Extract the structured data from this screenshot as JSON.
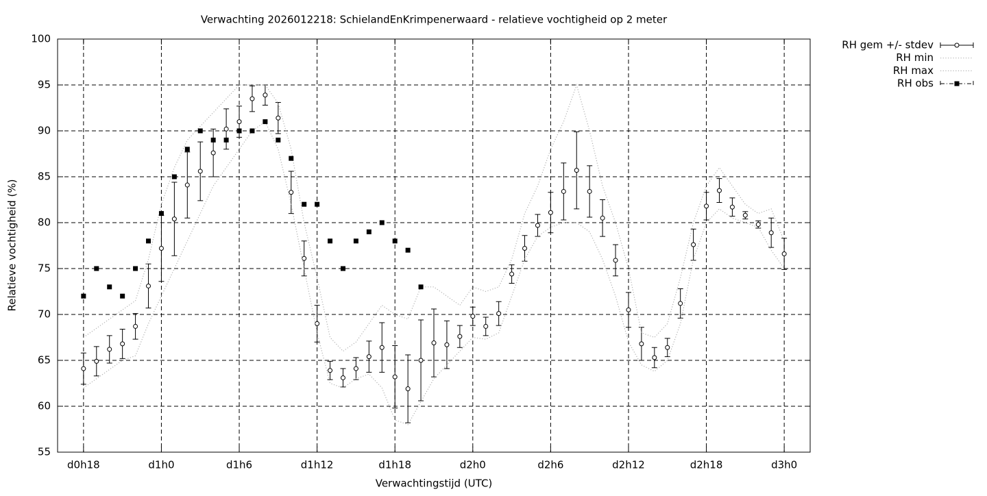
{
  "chart_data": {
    "type": "line",
    "title": "Verwachting 2026012218: SchielandEnKrimpenerwaard - relatieve vochtigheid op 2 meter",
    "x_label": "Verwachtingstijd (UTC)",
    "y_label": "Relatieve vochtigheid (%)",
    "x": [
      18,
      19,
      20,
      21,
      22,
      23,
      24,
      25,
      26,
      27,
      28,
      29,
      30,
      31,
      32,
      33,
      34,
      35,
      36,
      37,
      38,
      39,
      40,
      41,
      42,
      43,
      44,
      45,
      46,
      47,
      48,
      49,
      50,
      51,
      52,
      53,
      54,
      55,
      56,
      57,
      58,
      59,
      60,
      61,
      62,
      63,
      64,
      65,
      66,
      67,
      68,
      69,
      70,
      71,
      72
    ],
    "xlim": [
      16,
      74
    ],
    "xticks": [
      {
        "value": 18,
        "label": "d0h18"
      },
      {
        "value": 24,
        "label": "d1h0"
      },
      {
        "value": 30,
        "label": "d1h6"
      },
      {
        "value": 36,
        "label": "d1h12"
      },
      {
        "value": 42,
        "label": "d1h18"
      },
      {
        "value": 48,
        "label": "d2h0"
      },
      {
        "value": 54,
        "label": "d2h6"
      },
      {
        "value": 60,
        "label": "d2h12"
      },
      {
        "value": 66,
        "label": "d2h18"
      },
      {
        "value": 72,
        "label": "d3h0"
      }
    ],
    "ylim": [
      55,
      100
    ],
    "yticks": [
      55,
      60,
      65,
      70,
      75,
      80,
      85,
      90,
      95,
      100
    ],
    "grid": true,
    "legend": "outside-right",
    "series": [
      {
        "name": "RH gem +/- stdev",
        "color": "#000000",
        "style": "errorbars",
        "values": [
          64.1,
          64.9,
          66.2,
          66.8,
          68.7,
          73.1,
          77.2,
          80.4,
          84.1,
          85.6,
          87.6,
          90.2,
          91.0,
          93.5,
          93.9,
          91.4,
          83.3,
          76.1,
          69.0,
          63.9,
          63.1,
          64.1,
          65.4,
          66.4,
          63.2,
          61.9,
          65.0,
          66.9,
          66.7,
          67.6,
          69.8,
          68.7,
          70.1,
          74.4,
          77.2,
          79.7,
          81.1,
          83.4,
          85.7,
          83.4,
          80.5,
          75.9,
          70.5,
          66.8,
          65.3,
          66.4,
          71.2,
          77.6,
          81.8,
          83.5,
          81.7,
          80.8,
          79.8,
          78.9,
          76.6
        ],
        "errors": [
          1.7,
          1.6,
          1.5,
          1.6,
          1.4,
          2.4,
          3.6,
          4.0,
          3.6,
          3.2,
          2.6,
          2.2,
          1.7,
          1.4,
          1.1,
          1.7,
          2.3,
          1.9,
          2.0,
          1.0,
          1.0,
          1.2,
          1.7,
          2.7,
          3.4,
          3.7,
          4.4,
          3.7,
          2.6,
          1.2,
          1.0,
          1.0,
          1.3,
          1.0,
          1.4,
          1.2,
          2.2,
          3.1,
          4.2,
          2.8,
          2.0,
          1.7,
          1.9,
          1.8,
          1.1,
          1.0,
          1.6,
          1.7,
          1.5,
          1.3,
          1.0,
          0.4,
          0.4,
          1.6,
          1.7
        ]
      },
      {
        "name": "RH min",
        "color": "#b0b0b0",
        "style": "dots",
        "values": [
          62,
          63,
          64,
          65,
          65.5,
          69,
          72,
          75,
          78,
          81,
          84,
          86,
          88,
          90,
          91,
          88,
          82,
          75,
          68,
          62.5,
          62,
          63,
          63.5,
          62,
          58.5,
          58,
          60.5,
          63,
          64.5,
          66,
          67.5,
          67.3,
          68,
          72,
          76,
          78.5,
          79.5,
          80,
          80,
          79,
          76,
          72,
          67,
          64.5,
          63.8,
          65,
          69,
          76,
          80,
          81.5,
          80.5,
          80,
          79.5,
          77,
          75
        ]
      },
      {
        "name": "RH max",
        "color": "#b0b0b0",
        "style": "dots",
        "values": [
          67.5,
          68.5,
          69.5,
          70.5,
          71.5,
          76,
          82,
          86,
          89,
          90.5,
          92,
          93.5,
          95,
          95,
          95,
          93,
          88,
          80,
          74,
          67.5,
          66,
          67,
          69,
          71,
          70,
          69.5,
          73,
          73,
          72,
          71,
          73,
          72.5,
          73,
          76,
          81,
          84,
          88,
          91,
          95,
          90,
          84,
          80,
          75,
          68,
          67.5,
          69,
          74,
          80,
          84,
          86,
          84,
          82,
          81,
          81.5,
          78
        ]
      },
      {
        "name": "RH obs",
        "color": "#000000",
        "style": "points",
        "values": [
          72,
          75,
          73,
          72,
          75,
          78,
          81,
          85,
          88,
          90,
          89,
          89,
          90,
          90,
          91,
          89,
          87,
          82,
          82,
          78,
          75,
          78,
          79,
          80,
          78,
          77,
          73,
          null,
          null,
          null,
          null,
          null,
          null,
          null,
          null,
          null,
          null,
          null,
          null,
          null,
          null,
          null,
          null,
          null,
          null,
          null,
          null,
          null,
          null,
          null,
          null,
          null,
          null,
          null,
          null
        ]
      }
    ]
  }
}
